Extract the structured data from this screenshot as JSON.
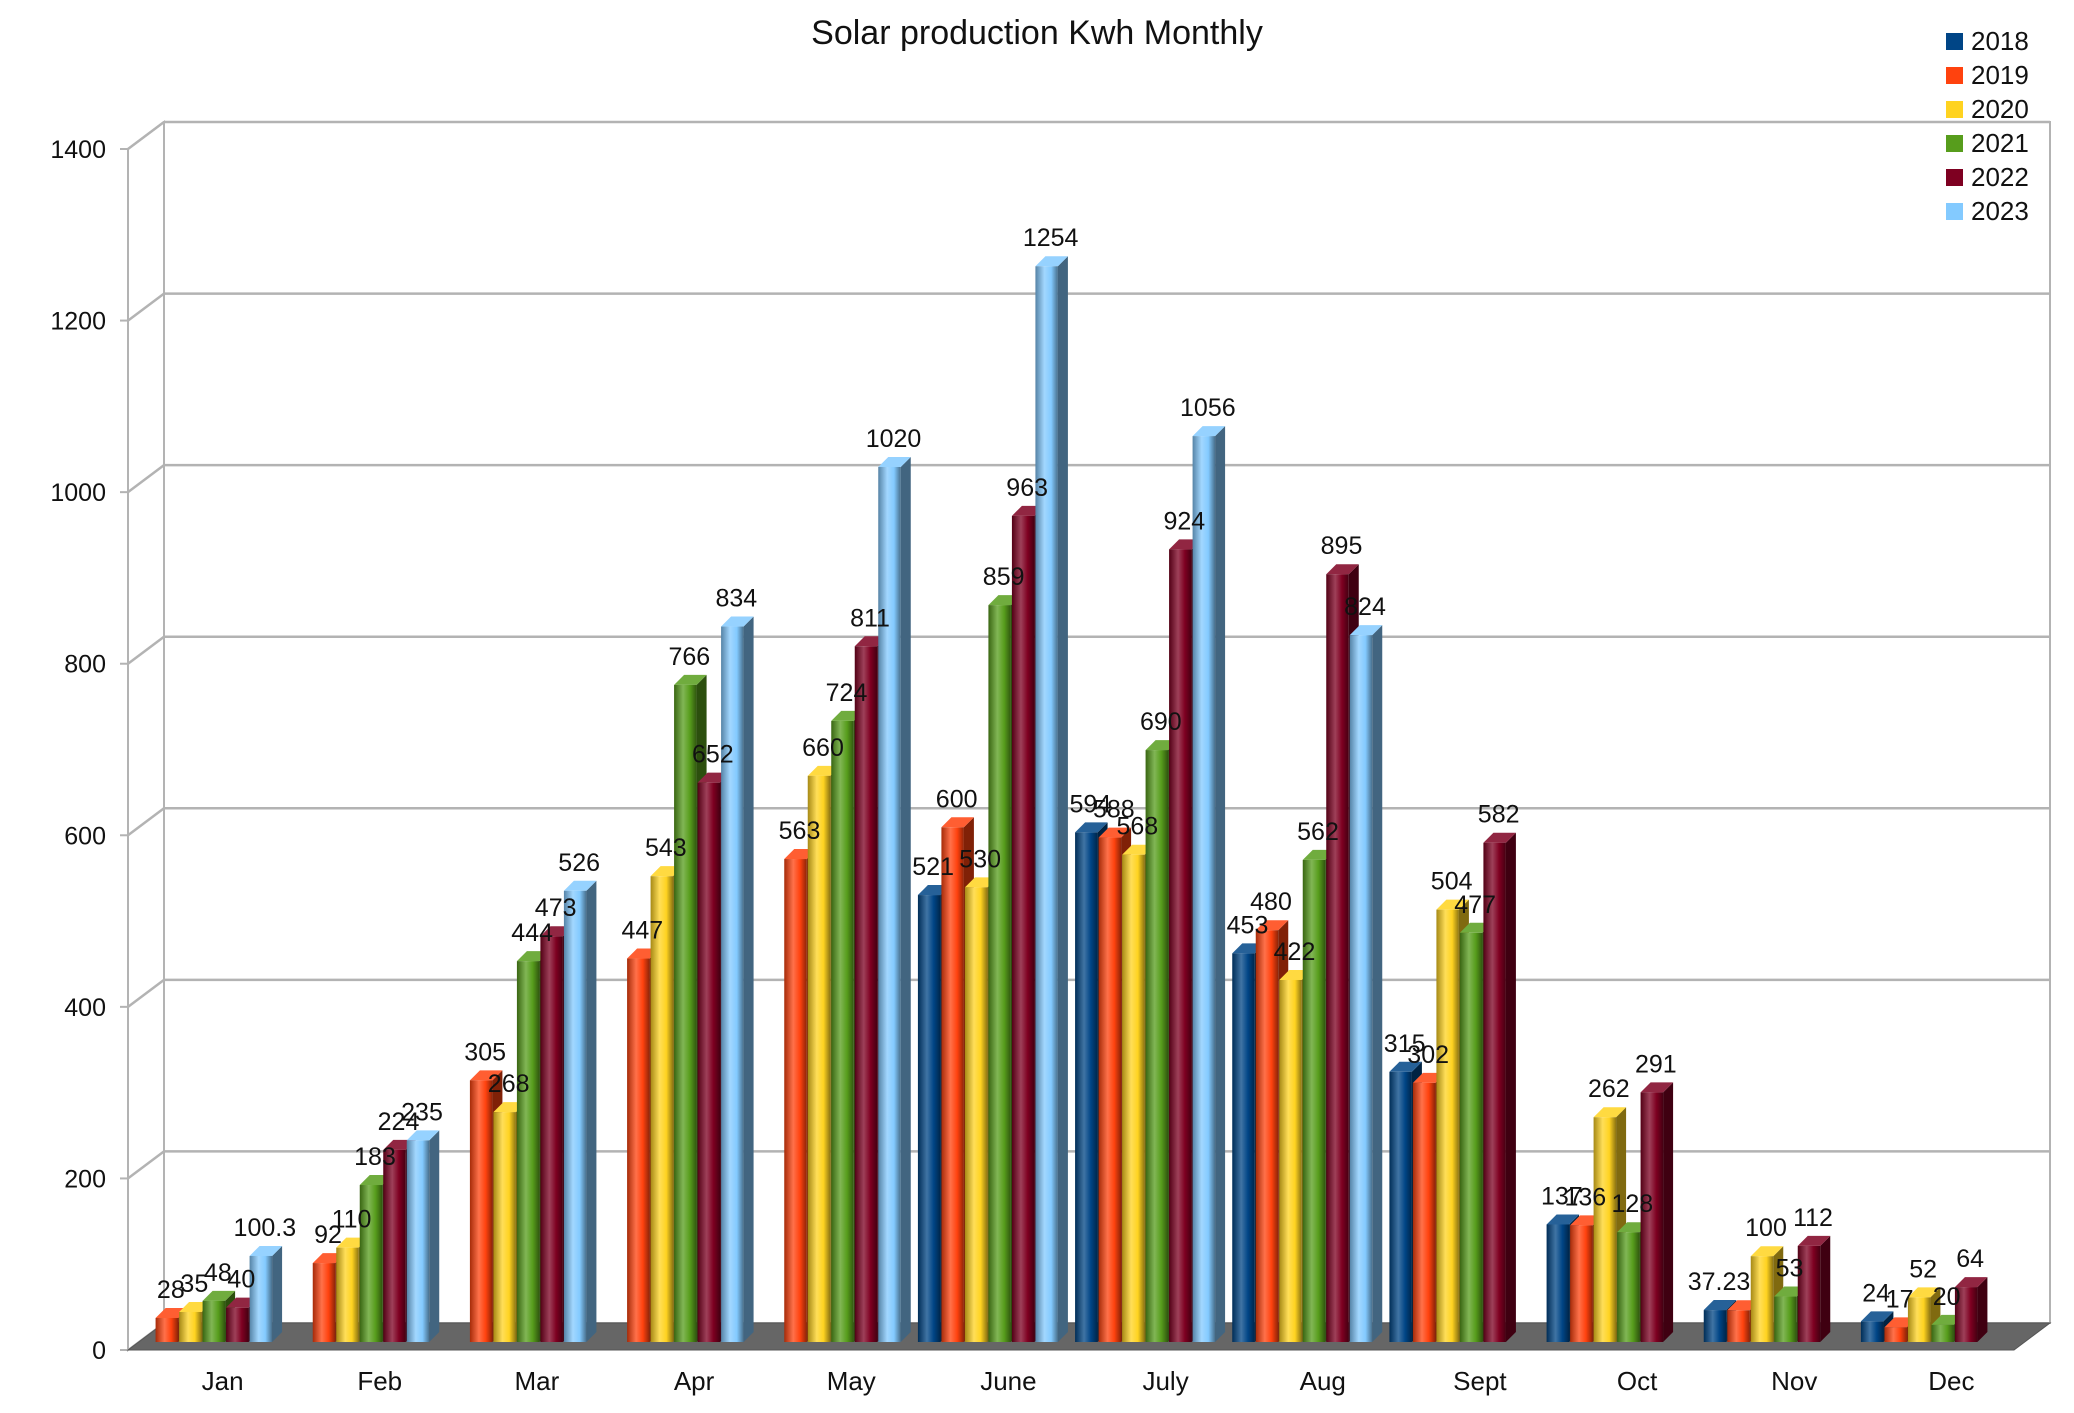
{
  "chart_data": {
    "type": "bar",
    "title": "Solar production Kwh Monthly",
    "xlabel": "",
    "ylabel": "",
    "ylim": [
      0,
      1400
    ],
    "yticks": [
      0,
      200,
      400,
      600,
      800,
      1000,
      1200,
      1400
    ],
    "grid": true,
    "legend_position": "top-right",
    "categories": [
      "Jan",
      "Feb",
      "Mar",
      "Apr",
      "May",
      "June",
      "July",
      "Aug",
      "Sept",
      "Oct",
      "Nov",
      "Dec"
    ],
    "series": [
      {
        "name": "2018",
        "color": "#004586",
        "values": [
          null,
          null,
          null,
          null,
          null,
          521,
          594,
          453,
          315,
          137,
          37.23,
          24
        ],
        "labels": [
          "",
          "",
          "",
          "",
          "",
          "521",
          "594",
          "453",
          "315",
          "137",
          "37.23",
          "24"
        ]
      },
      {
        "name": "2019",
        "color": "#ff420e",
        "values": [
          28,
          92,
          305,
          447,
          563,
          600,
          588,
          480,
          302,
          136,
          37,
          17
        ],
        "labels": [
          "28",
          "92",
          "305",
          "447",
          "563",
          "600",
          "588",
          "480",
          "302",
          "136",
          "",
          "17"
        ]
      },
      {
        "name": "2020",
        "color": "#ffd320",
        "values": [
          35,
          110,
          268,
          543,
          660,
          530,
          568,
          422,
          504,
          262,
          100,
          52
        ],
        "labels": [
          "35",
          "110",
          "268",
          "543",
          "660",
          "530",
          "568",
          "422",
          "504",
          "262",
          "100",
          "52"
        ]
      },
      {
        "name": "2021",
        "color": "#579d1c",
        "values": [
          48,
          183,
          444,
          766,
          724,
          859,
          690,
          562,
          477,
          128,
          53,
          20
        ],
        "labels": [
          "48",
          "183",
          "444",
          "766",
          "724",
          "859",
          "690",
          "562",
          "477",
          "128",
          "53",
          "20"
        ]
      },
      {
        "name": "2022",
        "color": "#7e0021",
        "values": [
          40,
          224,
          473,
          652,
          811,
          963,
          924,
          895,
          582,
          291,
          112,
          64
        ],
        "labels": [
          "40",
          "224",
          "473",
          "652",
          "811",
          "963",
          "924",
          "895",
          "582",
          "291",
          "112",
          "64"
        ]
      },
      {
        "name": "2023",
        "color": "#83caff",
        "values": [
          100.3,
          235,
          526,
          834,
          1020,
          1254,
          1056,
          824,
          null,
          null,
          null,
          null
        ],
        "labels": [
          "100.3",
          "235",
          "526",
          "834",
          "1020",
          "1254",
          "1056",
          "824",
          "",
          "",
          "",
          ""
        ]
      }
    ]
  }
}
